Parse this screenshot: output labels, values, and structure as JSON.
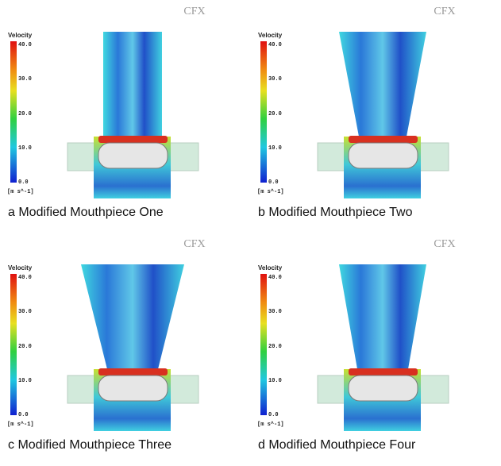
{
  "panels": [
    {
      "logo": "CFX",
      "legend": {
        "title": "Velocity",
        "ticks": [
          "40.0",
          "30.0",
          "20.0",
          "10.0",
          "0.0"
        ],
        "unit": "[m s^-1]"
      },
      "caption": "a  Modified Mouthpiece One"
    },
    {
      "logo": "CFX",
      "legend": {
        "title": "Velocity",
        "ticks": [
          "40.0",
          "30.0",
          "20.0",
          "10.0",
          "0.0"
        ],
        "unit": "[m s^-1]"
      },
      "caption": "b  Modified Mouthpiece Two"
    },
    {
      "logo": "CFX",
      "legend": {
        "title": "Velocity",
        "ticks": [
          "40.0",
          "30.0",
          "20.0",
          "10.0",
          "0.0"
        ],
        "unit": "[m s^-1]"
      },
      "caption": "c  Modified Mouthpiece Three"
    },
    {
      "logo": "CFX",
      "legend": {
        "title": "Velocity",
        "ticks": [
          "40.0",
          "30.0",
          "20.0",
          "10.0",
          "0.0"
        ],
        "unit": "[m s^-1]"
      },
      "caption": "d  Modified Mouthpiece Four"
    }
  ]
}
